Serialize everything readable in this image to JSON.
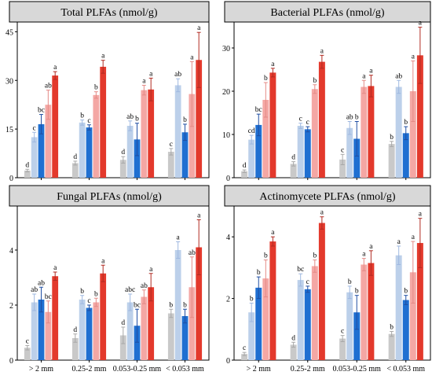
{
  "figure": {
    "series_colors": [
      "#c9c9c9",
      "#bcd0ea",
      "#1f6fd1",
      "#f4a7a4",
      "#e3392c"
    ],
    "panel_header_fill": "#d8d8d8",
    "error_bar_colors": [
      "#a8a8a8",
      "#9fb8e0",
      "#1f4ea3",
      "#e48a86",
      "#b12b22"
    ]
  },
  "chart_data": [
    {
      "type": "bar",
      "title": "Total PLFAs (nmol/g)",
      "categories": [
        "> 2 mm",
        "0.25-2 mm",
        "0.053-0.25 mm",
        "< 0.053 mm"
      ],
      "show_xticklabels": false,
      "ylim": [
        0,
        48
      ],
      "yticks": [
        0,
        15,
        30,
        45
      ],
      "series": [
        {
          "values": [
            2.2,
            4.5,
            5.5,
            8.0
          ],
          "errors": [
            0.4,
            0.6,
            1.0,
            1.0
          ],
          "letters": [
            "d",
            "d",
            "d",
            "c"
          ]
        },
        {
          "values": [
            12.5,
            17.0,
            16.0,
            28.5
          ],
          "errors": [
            1.5,
            0.8,
            1.5,
            2.0
          ],
          "letters": [
            "c",
            "b",
            "ab",
            "ab"
          ]
        },
        {
          "values": [
            16.5,
            15.5,
            11.8,
            14.0
          ],
          "errors": [
            3.0,
            0.8,
            5.0,
            2.5
          ],
          "letters": [
            "bc",
            "c",
            "b",
            "b"
          ]
        },
        {
          "values": [
            22.5,
            25.5,
            27.0,
            25.8
          ],
          "errors": [
            4.5,
            1.0,
            1.5,
            10.0
          ],
          "letters": [
            "ab",
            "b",
            "a",
            "a"
          ]
        },
        {
          "values": [
            31.5,
            34.2,
            27.2,
            36.3
          ],
          "errors": [
            1.2,
            2.0,
            3.5,
            8.5
          ],
          "letters": [
            "a",
            "a",
            "a",
            "a"
          ]
        }
      ]
    },
    {
      "type": "bar",
      "title": "Bacterial PLFAs (nmol/g)",
      "categories": [
        "> 2 mm",
        "0.25-2 mm",
        "0.053-0.25 mm",
        "< 0.053 mm"
      ],
      "show_xticklabels": false,
      "ylim": [
        0,
        36
      ],
      "yticks": [
        0,
        10,
        20,
        30
      ],
      "series": [
        {
          "values": [
            1.5,
            3.2,
            4.2,
            7.8
          ],
          "errors": [
            0.3,
            0.5,
            1.2,
            0.6
          ],
          "letters": [
            "d",
            "d",
            "c",
            "b"
          ]
        },
        {
          "values": [
            8.8,
            12.0,
            11.5,
            21.0
          ],
          "errors": [
            1.0,
            0.6,
            1.5,
            1.5
          ],
          "letters": [
            "cd",
            "c",
            "ab",
            "ab"
          ]
        },
        {
          "values": [
            12.2,
            11.2,
            9.0,
            10.3
          ],
          "errors": [
            2.5,
            0.6,
            4.0,
            1.5
          ],
          "letters": [
            "bc",
            "c",
            "b",
            "b"
          ]
        },
        {
          "values": [
            18.0,
            20.5,
            21.0,
            20.0
          ],
          "errors": [
            4.0,
            1.0,
            1.5,
            7.0
          ],
          "letters": [
            "b",
            "b",
            "a",
            "a"
          ]
        },
        {
          "values": [
            24.3,
            26.8,
            21.2,
            28.3
          ],
          "errors": [
            1.0,
            1.5,
            2.5,
            6.5
          ],
          "letters": [
            "a",
            "a",
            "a",
            "a"
          ]
        }
      ]
    },
    {
      "type": "bar",
      "title": "Fungal PLFAs (nmol/g)",
      "categories": [
        "> 2 mm",
        "0.25-2 mm",
        "0.053-0.25 mm",
        "< 0.053 mm"
      ],
      "show_xticklabels": true,
      "ylim": [
        0,
        5.6
      ],
      "yticks": [
        0,
        2,
        4
      ],
      "series": [
        {
          "values": [
            0.45,
            0.8,
            0.9,
            1.7
          ],
          "errors": [
            0.08,
            0.15,
            0.3,
            0.15
          ],
          "letters": [
            "c",
            "d",
            "d",
            "b"
          ]
        },
        {
          "values": [
            2.1,
            2.2,
            2.1,
            4.0
          ],
          "errors": [
            0.3,
            0.15,
            0.3,
            0.3
          ],
          "letters": [
            "ab",
            "b",
            "abc",
            "a"
          ]
        },
        {
          "values": [
            2.2,
            1.9,
            1.25,
            1.6
          ],
          "errors": [
            0.45,
            0.1,
            0.6,
            0.25
          ],
          "letters": [
            "ab",
            "c",
            "bc",
            "b"
          ]
        },
        {
          "values": [
            1.75,
            2.1,
            2.3,
            2.65
          ],
          "errors": [
            0.4,
            0.15,
            0.25,
            1.1
          ],
          "letters": [
            "bc",
            "b",
            "ab",
            "ab"
          ]
        },
        {
          "values": [
            3.05,
            3.15,
            2.65,
            4.1
          ],
          "errors": [
            0.15,
            0.3,
            0.5,
            1.0
          ],
          "letters": [
            "a",
            "a",
            "a",
            "a"
          ]
        }
      ]
    },
    {
      "type": "bar",
      "title": "Actinomycete PLFAs (nmol/g)",
      "categories": [
        "> 2 mm",
        "0.25-2 mm",
        "0.053-0.25 mm",
        "< 0.053 mm"
      ],
      "show_xticklabels": true,
      "ylim": [
        0,
        5.0
      ],
      "yticks": [
        0,
        2,
        4
      ],
      "series": [
        {
          "values": [
            0.2,
            0.5,
            0.7,
            0.85
          ],
          "errors": [
            0.05,
            0.08,
            0.1,
            0.08
          ],
          "letters": [
            "c",
            "d",
            "c",
            "b"
          ]
        },
        {
          "values": [
            1.55,
            2.6,
            2.2,
            3.4
          ],
          "errors": [
            0.3,
            0.2,
            0.2,
            0.3
          ],
          "letters": [
            "b",
            "bc",
            "b",
            "a"
          ]
        },
        {
          "values": [
            2.35,
            2.3,
            1.55,
            1.95
          ],
          "errors": [
            0.35,
            0.1,
            0.55,
            0.15
          ],
          "letters": [
            "b",
            "c",
            "b",
            "b"
          ]
        },
        {
          "values": [
            2.65,
            3.05,
            3.1,
            2.85
          ],
          "errors": [
            0.6,
            0.2,
            0.2,
            1.0
          ],
          "letters": [
            "b",
            "b",
            "a",
            "a"
          ]
        },
        {
          "values": [
            3.85,
            4.45,
            3.15,
            3.8
          ],
          "errors": [
            0.15,
            0.2,
            0.4,
            0.8
          ],
          "letters": [
            "a",
            "a",
            "a",
            "a"
          ]
        }
      ]
    }
  ]
}
